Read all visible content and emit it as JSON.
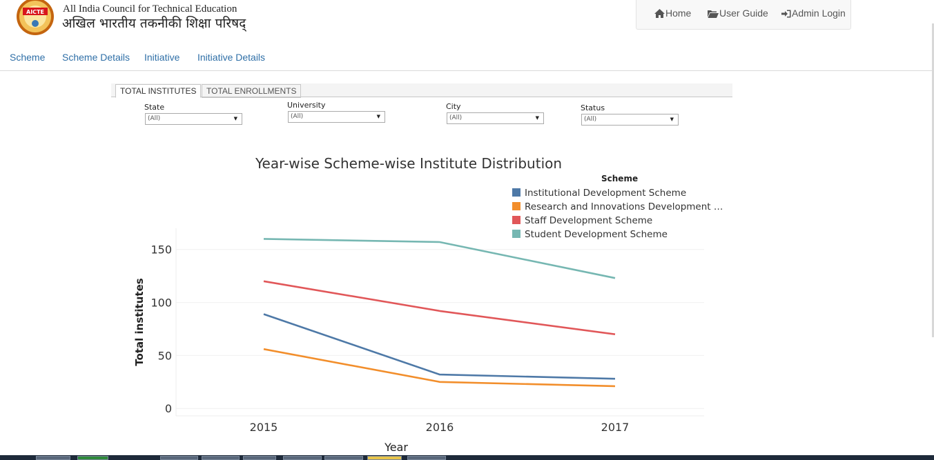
{
  "header": {
    "logo_text": "AICTE",
    "org_name_en": "All India Council for Technical Education",
    "org_name_hi": "अखिल भारतीय तकनीकी शिक्षा परिषद्",
    "links": [
      {
        "label": "Home",
        "icon": "home-icon"
      },
      {
        "label": "User Guide",
        "icon": "folder-open-icon"
      },
      {
        "label": "Admin Login",
        "icon": "sign-in-icon"
      }
    ]
  },
  "nav": {
    "items": [
      "Scheme",
      "Scheme Details",
      "Initiative",
      "Initiative Details"
    ]
  },
  "tabs": {
    "items": [
      "TOTAL INSTITUTES",
      "TOTAL ENROLLMENTS"
    ],
    "active": 0
  },
  "filters": [
    {
      "label": "State",
      "value": "(All)"
    },
    {
      "label": "University",
      "value": "(All)"
    },
    {
      "label": "City",
      "value": "(All)"
    },
    {
      "label": "Status",
      "value": "(All)"
    }
  ],
  "colors": {
    "accent_link": "#2f6fa7",
    "series": [
      "#4e79a7",
      "#f28e2b",
      "#e15759",
      "#76b7b2"
    ]
  },
  "chart_data": {
    "type": "line",
    "title": "Year-wise Scheme-wise Institute Distribution",
    "xlabel": "Year",
    "ylabel": "Total institutes",
    "x": [
      "2015",
      "2016",
      "2017"
    ],
    "yticks": [
      0,
      50,
      100,
      150
    ],
    "ylim": [
      -7,
      170
    ],
    "grid": true,
    "legend_title": "Scheme",
    "legend_position": "top-right",
    "series": [
      {
        "name": "Institutional Development Scheme",
        "values": [
          89,
          32,
          28
        ]
      },
      {
        "name": "Research and Innovations Development S…",
        "values": [
          56,
          25,
          21
        ]
      },
      {
        "name": "Staff Development Scheme",
        "values": [
          120,
          92,
          70
        ]
      },
      {
        "name": "Student Development Scheme",
        "values": [
          160,
          157,
          123
        ]
      }
    ]
  }
}
